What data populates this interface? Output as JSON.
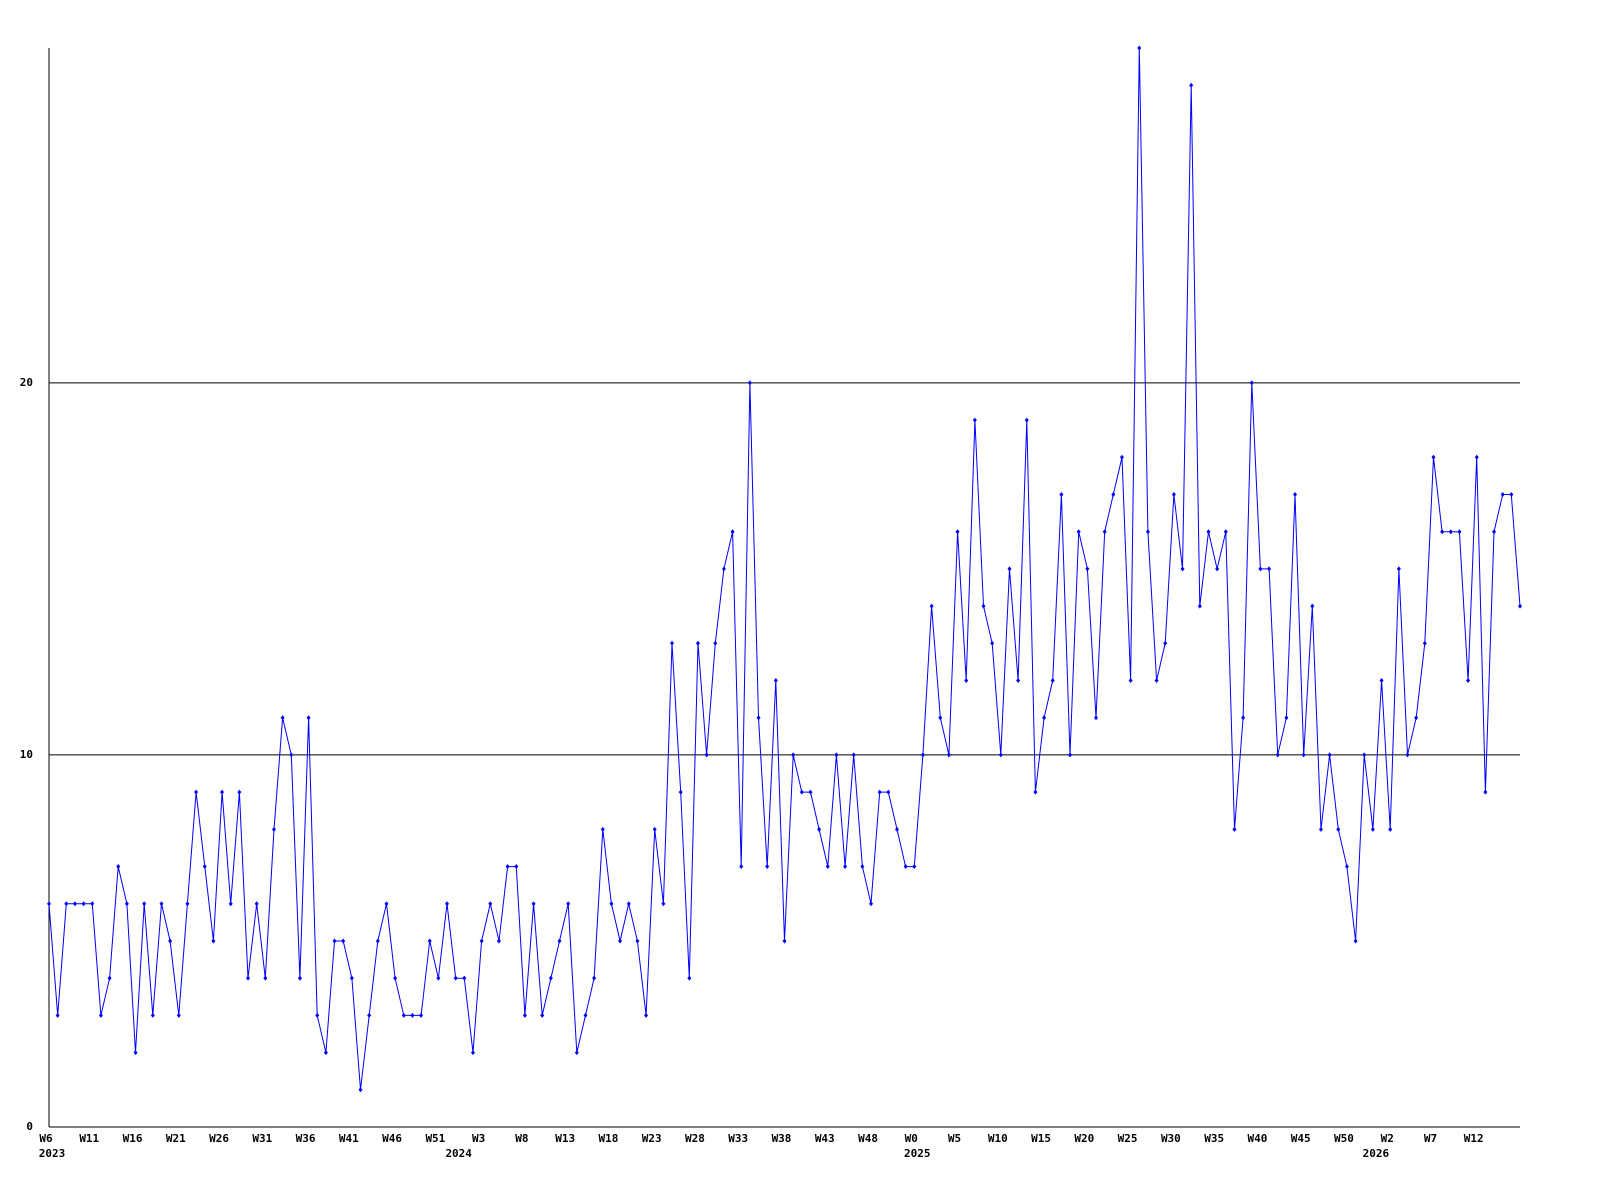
{
  "chart_data": {
    "type": "line",
    "categories": [
      "W6",
      null,
      null,
      null,
      null,
      "W11",
      null,
      null,
      null,
      null,
      "W16",
      null,
      null,
      null,
      null,
      "W21",
      null,
      null,
      null,
      null,
      "W26",
      null,
      null,
      null,
      null,
      "W31",
      null,
      null,
      null,
      null,
      "W36",
      null,
      null,
      null,
      null,
      "W41",
      null,
      null,
      null,
      null,
      "W46",
      null,
      null,
      null,
      null,
      "W51",
      null,
      null,
      null,
      null,
      "W3",
      null,
      null,
      null,
      null,
      "W8",
      null,
      null,
      null,
      null,
      "W13",
      null,
      null,
      null,
      null,
      "W18",
      null,
      null,
      null,
      null,
      "W23",
      null,
      null,
      null,
      null,
      "W28",
      null,
      null,
      null,
      null,
      "W33",
      null,
      null,
      null,
      null,
      "W38",
      null,
      null,
      null,
      null,
      "W43",
      null,
      null,
      null,
      null,
      "W48",
      null,
      null,
      null,
      null,
      "W0",
      null,
      null,
      null,
      null,
      "W5",
      null,
      null,
      null,
      null,
      "W10",
      null,
      null,
      null,
      null,
      "W15",
      null,
      null,
      null,
      null,
      "W20",
      null,
      null,
      null,
      null,
      "W25",
      null,
      null,
      null,
      null,
      "W30",
      null,
      null,
      null,
      null,
      "W35",
      null,
      null,
      null,
      null,
      "W40",
      null,
      null,
      null,
      null,
      "W45",
      null,
      null,
      null,
      null,
      "W50",
      null,
      null,
      null,
      null,
      "W2",
      null,
      null,
      null,
      null,
      "W7",
      null,
      null,
      null,
      null,
      "W12",
      null,
      null,
      null,
      null,
      null
    ],
    "years": [
      {
        "value": 0,
        "label": "2023"
      },
      {
        "value": 47,
        "label": "2024"
      },
      {
        "value": 100,
        "label": "2025"
      },
      {
        "value": 153,
        "label": "2026"
      }
    ],
    "series": [
      {
        "color": "#0000ff",
        "values": [
          6,
          3,
          6,
          6,
          6,
          6,
          3,
          4,
          7,
          6,
          2,
          6,
          3,
          6,
          5,
          3,
          6,
          9,
          7,
          5,
          9,
          6,
          9,
          4,
          6,
          4,
          8,
          11,
          10,
          4,
          11,
          3,
          2,
          5,
          5,
          4,
          1,
          3,
          5,
          6,
          4,
          3,
          3,
          3,
          5,
          4,
          6,
          4,
          4,
          2,
          5,
          6,
          5,
          7,
          7,
          3,
          6,
          3,
          4,
          5,
          6,
          2,
          3,
          4,
          8,
          6,
          5,
          6,
          5,
          3,
          8,
          6,
          13,
          9,
          4,
          13,
          10,
          13,
          15,
          16,
          7,
          20,
          11,
          7,
          12,
          5,
          10,
          9,
          9,
          8,
          7,
          10,
          7,
          10,
          7,
          6,
          9,
          9,
          8,
          7,
          7,
          10,
          14,
          11,
          10,
          16,
          12,
          19,
          14,
          13,
          10,
          15,
          12,
          19,
          9,
          11,
          12,
          17,
          10,
          16,
          15,
          11,
          16,
          17,
          18,
          12,
          29,
          16,
          12,
          13,
          17,
          15,
          28,
          14,
          16,
          15,
          16,
          8,
          11,
          20,
          15,
          15,
          10,
          11,
          17,
          10,
          14,
          8,
          10,
          8,
          7,
          5,
          10,
          8,
          12,
          8,
          15,
          10,
          11,
          13,
          18,
          16,
          16,
          16,
          12,
          18,
          9,
          16,
          17,
          17,
          14
        ]
      }
    ],
    "ylim": [
      0,
      29
    ],
    "yticks": [
      0,
      10,
      20
    ],
    "grid": true
  }
}
